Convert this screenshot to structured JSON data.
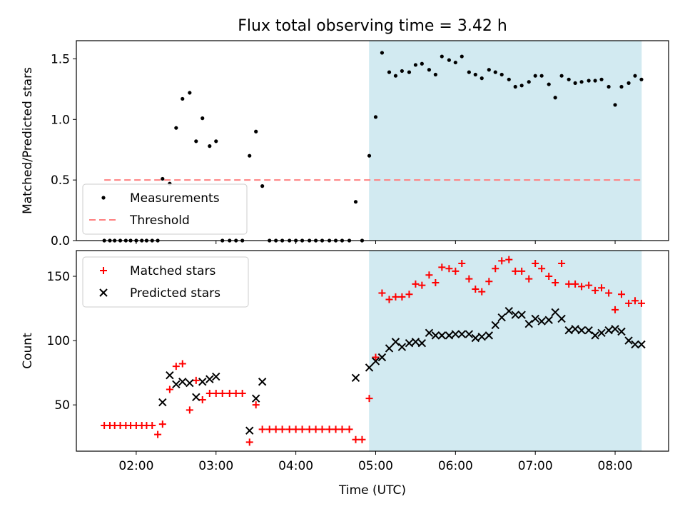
{
  "title": "Flux total observing time = 3.42 h",
  "colors": {
    "measurement": "#000000",
    "threshold": "#ff8080",
    "matched": "#ff0000",
    "predicted": "#000000",
    "highlight": "#add8e6"
  },
  "chart_data": [
    {
      "type": "scatter",
      "ylabel": "Matched/Predicted stars",
      "xlabel": "",
      "xlim": [
        1.25,
        8.67
      ],
      "ylim": [
        0.0,
        1.65
      ],
      "yticks": [
        0.0,
        0.5,
        1.0,
        1.5
      ],
      "ytick_labels": [
        "0.0",
        "0.5",
        "1.0",
        "1.5"
      ],
      "grid": false,
      "legend_position": "lower-left",
      "highlight_span": [
        4.917,
        8.333
      ],
      "threshold": {
        "name": "Threshold",
        "y": 0.5,
        "x_range": [
          1.6,
          8.33
        ],
        "style": "dashed"
      },
      "series": [
        {
          "name": "Measurements",
          "marker": "dot",
          "x": [
            1.6,
            1.67,
            1.73,
            1.8,
            1.87,
            1.93,
            2.0,
            2.07,
            2.13,
            2.2,
            2.27,
            2.33,
            2.42,
            2.5,
            2.58,
            2.67,
            2.75,
            2.83,
            2.92,
            3.0,
            3.08,
            3.17,
            3.25,
            3.33,
            3.42,
            3.5,
            3.58,
            3.67,
            3.75,
            3.83,
            3.92,
            4.0,
            4.08,
            4.17,
            4.25,
            4.33,
            4.42,
            4.5,
            4.58,
            4.67,
            4.75,
            4.83,
            4.92,
            5.0,
            5.08,
            5.17,
            5.25,
            5.33,
            5.42,
            5.5,
            5.58,
            5.67,
            5.75,
            5.83,
            5.92,
            6.0,
            6.08,
            6.17,
            6.25,
            6.33,
            6.42,
            6.5,
            6.58,
            6.67,
            6.75,
            6.83,
            6.92,
            7.0,
            7.08,
            7.17,
            7.25,
            7.33,
            7.42,
            7.5,
            7.58,
            7.67,
            7.75,
            7.83,
            7.92,
            8.0,
            8.08,
            8.17,
            8.25,
            8.33
          ],
          "y": [
            0,
            0,
            0,
            0,
            0,
            0,
            0,
            0,
            0,
            0,
            0,
            0.51,
            0.47,
            0.93,
            1.17,
            1.22,
            0.82,
            1.01,
            0.78,
            0.82,
            0,
            0,
            0,
            0,
            0.7,
            0.9,
            0.45,
            0,
            0,
            0,
            0,
            0,
            0,
            0,
            0,
            0,
            0,
            0,
            0,
            0,
            0.32,
            0,
            0.7,
            1.02,
            1.55,
            1.39,
            1.36,
            1.4,
            1.39,
            1.45,
            1.46,
            1.41,
            1.37,
            1.52,
            1.49,
            1.47,
            1.52,
            1.39,
            1.37,
            1.34,
            1.41,
            1.39,
            1.37,
            1.33,
            1.27,
            1.28,
            1.31,
            1.36,
            1.36,
            1.29,
            1.18,
            1.36,
            1.33,
            1.3,
            1.31,
            1.32,
            1.32,
            1.33,
            1.27,
            1.12,
            1.27,
            1.3,
            1.36,
            1.33
          ]
        }
      ]
    },
    {
      "type": "scatter",
      "ylabel": "Count",
      "xlabel": "Time (UTC)",
      "xlim": [
        1.25,
        8.67
      ],
      "ylim": [
        14,
        170
      ],
      "yticks": [
        50,
        100,
        150
      ],
      "ytick_labels": [
        "50",
        "100",
        "150"
      ],
      "xticks": [
        2,
        3,
        4,
        5,
        6,
        7,
        8
      ],
      "xtick_labels": [
        "02:00",
        "03:00",
        "04:00",
        "05:00",
        "06:00",
        "07:00",
        "08:00"
      ],
      "grid": false,
      "legend_position": "upper-left",
      "highlight_span": [
        4.917,
        8.333
      ],
      "series": [
        {
          "name": "Matched stars",
          "marker": "plus",
          "x": [
            1.6,
            1.67,
            1.73,
            1.8,
            1.87,
            1.93,
            2.0,
            2.07,
            2.13,
            2.2,
            2.27,
            2.33,
            2.42,
            2.5,
            2.58,
            2.67,
            2.75,
            2.83,
            2.92,
            3.0,
            3.08,
            3.17,
            3.25,
            3.33,
            3.42,
            3.5,
            3.58,
            3.67,
            3.75,
            3.83,
            3.92,
            4.0,
            4.08,
            4.17,
            4.25,
            4.33,
            4.42,
            4.5,
            4.58,
            4.67,
            4.75,
            4.83,
            4.92,
            5.0,
            5.08,
            5.17,
            5.25,
            5.33,
            5.42,
            5.5,
            5.58,
            5.67,
            5.75,
            5.83,
            5.92,
            6.0,
            6.08,
            6.17,
            6.25,
            6.33,
            6.42,
            6.5,
            6.58,
            6.67,
            6.75,
            6.83,
            6.92,
            7.0,
            7.08,
            7.17,
            7.25,
            7.33,
            7.42,
            7.5,
            7.58,
            7.67,
            7.75,
            7.83,
            7.92,
            8.0,
            8.08,
            8.17,
            8.25,
            8.33
          ],
          "y": [
            34,
            34,
            34,
            34,
            34,
            34,
            34,
            34,
            34,
            34,
            27,
            35,
            62,
            80,
            82,
            46,
            69,
            54,
            59,
            59,
            59,
            59,
            59,
            59,
            21,
            50,
            31,
            31,
            31,
            31,
            31,
            31,
            31,
            31,
            31,
            31,
            31,
            31,
            31,
            31,
            23,
            23,
            55,
            87,
            137,
            132,
            134,
            134,
            136,
            144,
            143,
            151,
            145,
            157,
            156,
            154,
            160,
            148,
            140,
            138,
            146,
            156,
            162,
            163,
            154,
            154,
            148,
            160,
            156,
            150,
            145,
            160,
            144,
            144,
            142,
            143,
            139,
            141,
            137,
            124,
            136,
            129,
            131,
            129
          ]
        },
        {
          "name": "Predicted stars",
          "marker": "x",
          "x": [
            2.33,
            2.42,
            2.5,
            2.58,
            2.67,
            2.75,
            2.83,
            2.92,
            3.0,
            3.42,
            3.5,
            3.58,
            4.75,
            4.92,
            5.0,
            5.08,
            5.17,
            5.25,
            5.33,
            5.42,
            5.5,
            5.58,
            5.67,
            5.75,
            5.83,
            5.92,
            6.0,
            6.08,
            6.17,
            6.25,
            6.33,
            6.42,
            6.5,
            6.58,
            6.67,
            6.75,
            6.83,
            6.92,
            7.0,
            7.08,
            7.17,
            7.25,
            7.33,
            7.42,
            7.5,
            7.58,
            7.67,
            7.75,
            7.83,
            7.92,
            8.0,
            8.08,
            8.17,
            8.25,
            8.33
          ],
          "y": [
            52,
            73,
            66,
            68,
            67,
            56,
            68,
            70,
            72,
            30,
            55,
            68,
            71,
            79,
            84,
            87,
            94,
            99,
            95,
            98,
            99,
            98,
            106,
            104,
            104,
            104,
            105,
            105,
            105,
            102,
            103,
            104,
            112,
            118,
            123,
            120,
            120,
            113,
            117,
            115,
            116,
            122,
            117,
            108,
            109,
            108,
            108,
            104,
            106,
            108,
            109,
            107,
            100,
            97,
            97
          ]
        }
      ]
    }
  ]
}
